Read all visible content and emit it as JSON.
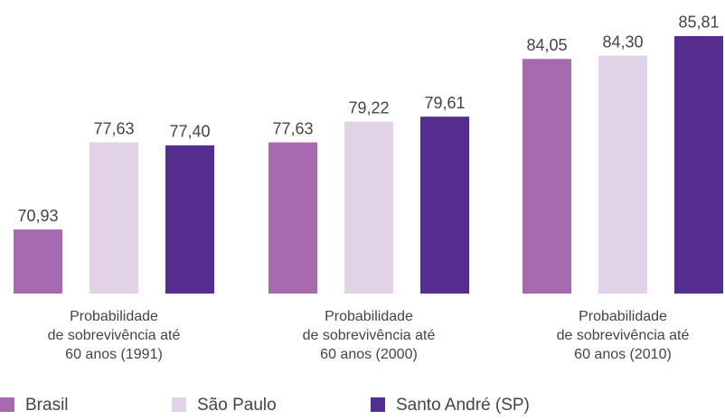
{
  "chart_data": {
    "type": "bar",
    "categories": [
      [
        "Probabilidade",
        "de sobrevivência até",
        "60 anos (1991)"
      ],
      [
        "Probabilidade",
        "de sobrevivência até",
        "60 anos (2000)"
      ],
      [
        "Probabilidade",
        "de sobrevivência até",
        "60 anos (2010)"
      ]
    ],
    "series": [
      {
        "name": "Brasil",
        "color": "#a86aaf",
        "values": [
          70.93,
          77.63,
          84.05
        ],
        "value_labels": [
          "70,93",
          "77,63",
          "84,05"
        ]
      },
      {
        "name": "São Paulo",
        "color": "#e2d2e7",
        "values": [
          77.63,
          79.22,
          84.3
        ],
        "value_labels": [
          "77,63",
          "79,22",
          "84,30"
        ]
      },
      {
        "name": "Santo André (SP)",
        "color": "#552d8e",
        "values": [
          77.4,
          79.61,
          85.81
        ],
        "value_labels": [
          "77,40",
          "79,61",
          "85,81"
        ]
      }
    ],
    "ylim": [
      66,
      86.5
    ]
  }
}
